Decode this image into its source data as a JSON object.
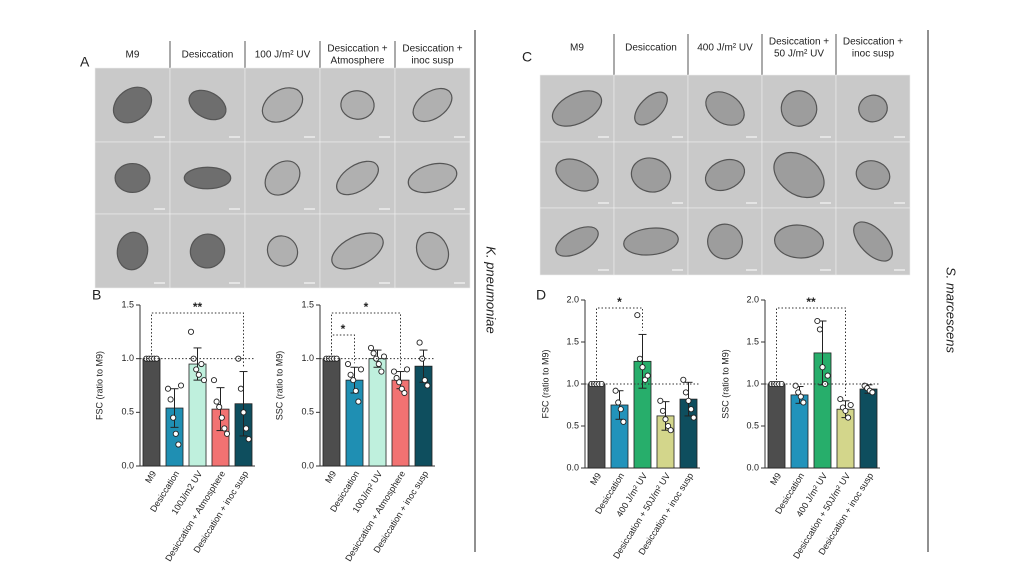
{
  "micrographs": [
    {
      "label": "A",
      "headers": [
        [
          "M9"
        ],
        [
          "Desiccation"
        ],
        [
          "100 J/m² UV"
        ],
        [
          "Desiccation +",
          "Atmosphere"
        ],
        [
          "Desiccation +",
          "inoc susp"
        ]
      ]
    },
    {
      "label": "C",
      "headers": [
        [
          "M9"
        ],
        [
          "Desiccation"
        ],
        [
          "400 J/m² UV"
        ],
        [
          "Desiccation +",
          "50 J/m² UV"
        ],
        [
          "Desiccation +",
          "inoc susp"
        ]
      ]
    }
  ],
  "species": [
    "K. pneumoniae",
    "S. marcescens"
  ],
  "chart_panels": [
    "B",
    "D"
  ],
  "chart_data": [
    {
      "type": "bar",
      "ylabel": "FSC (ratio to M9)",
      "categories": [
        "M9",
        "Desiccation",
        "100J/m2 UV",
        "Desiccation + Atmosphere",
        "Desiccation + inoc susp"
      ],
      "values": [
        1.0,
        0.54,
        0.95,
        0.53,
        0.58
      ],
      "errors": [
        0,
        0.18,
        0.15,
        0.2,
        0.3
      ],
      "points": [
        [
          1,
          1,
          1,
          1,
          1
        ],
        [
          0.72,
          0.62,
          0.45,
          0.3,
          0.2,
          0.75
        ],
        [
          1.25,
          1.0,
          0.9,
          0.85,
          0.95,
          0.8
        ],
        [
          0.8,
          0.6,
          0.55,
          0.45,
          0.35,
          0.3
        ],
        [
          1.0,
          0.72,
          0.5,
          0.35,
          0.25
        ]
      ],
      "colors": [
        "#4d4d4d",
        "#1f8fb3",
        "#bff0dd",
        "#f27272",
        "#0e4e5e"
      ],
      "ylim": [
        0,
        1.5
      ],
      "yticks": [
        {
          "value": 0,
          "label": "0.0"
        },
        {
          "value": 0.5,
          "label": "0.5"
        },
        {
          "value": 1,
          "label": "1.0"
        },
        {
          "value": 1.5,
          "label": "1.5"
        }
      ],
      "reference_line": 1,
      "significance": [
        {
          "text": "**",
          "from": 0,
          "to": 4
        }
      ]
    },
    {
      "type": "bar",
      "ylabel": "SSC (ratio to M9)",
      "categories": [
        "M9",
        "Desiccation",
        "100J/m² UV",
        "Desiccation + Atmosphere",
        "Desiccation + inoc susp"
      ],
      "values": [
        1.0,
        0.8,
        1.0,
        0.8,
        0.93
      ],
      "errors": [
        0,
        0.12,
        0.08,
        0.08,
        0.15
      ],
      "points": [
        [
          1,
          1,
          1,
          1,
          1
        ],
        [
          0.95,
          0.85,
          0.8,
          0.7,
          0.6,
          0.9
        ],
        [
          1.1,
          1.05,
          1.0,
          0.95,
          0.88,
          1.02
        ],
        [
          0.88,
          0.82,
          0.78,
          0.72,
          0.68,
          0.9
        ],
        [
          1.15,
          1.0,
          0.8,
          0.75
        ]
      ],
      "colors": [
        "#4d4d4d",
        "#1f8fb3",
        "#bff0dd",
        "#f27272",
        "#0e4e5e"
      ],
      "ylim": [
        0,
        1.5
      ],
      "yticks": [
        {
          "value": 0,
          "label": "0.0"
        },
        {
          "value": 0.5,
          "label": "0.5"
        },
        {
          "value": 1,
          "label": "1.0"
        },
        {
          "value": 1.5,
          "label": "1.5"
        }
      ],
      "reference_line": 1,
      "significance": [
        {
          "text": "*",
          "from": 0,
          "to": 1
        },
        {
          "text": "*",
          "from": 0,
          "to": 3
        }
      ]
    },
    {
      "type": "bar",
      "ylabel": "FSC (ratio to M9)",
      "categories": [
        "M9",
        "Desiccation",
        "400 J/m² UV",
        "Desiccation + 50J/m² UV",
        "Desiccation + inoc susp"
      ],
      "values": [
        1.0,
        0.75,
        1.27,
        0.62,
        0.82
      ],
      "errors": [
        0,
        0.17,
        0.32,
        0.17,
        0.2
      ],
      "points": [
        [
          1,
          1,
          1,
          1,
          1
        ],
        [
          0.92,
          0.78,
          0.7,
          0.55
        ],
        [
          1.82,
          1.3,
          1.2,
          1.05,
          1.1
        ],
        [
          0.8,
          0.68,
          0.58,
          0.5,
          0.45
        ],
        [
          1.05,
          0.9,
          0.8,
          0.7,
          0.6
        ]
      ],
      "colors": [
        "#4d4d4d",
        "#2293bb",
        "#27ae6b",
        "#d3d68b",
        "#0e4e5e"
      ],
      "ylim": [
        0,
        2
      ],
      "yticks": [
        {
          "value": 0,
          "label": "0.0"
        },
        {
          "value": 0.5,
          "label": "0.5"
        },
        {
          "value": 1,
          "label": "1.0"
        },
        {
          "value": 1.5,
          "label": "1.5"
        },
        {
          "value": 2,
          "label": "2.0"
        }
      ],
      "reference_line": 1,
      "significance": [
        {
          "text": "*",
          "from": 0,
          "to": 2
        }
      ]
    },
    {
      "type": "bar",
      "ylabel": "SSC (ratio to M9)",
      "categories": [
        "M9",
        "Desiccation",
        "400 J/m² UV",
        "Desiccation + 50J/m² UV",
        "Desiccation + inoc susp"
      ],
      "values": [
        1.0,
        0.87,
        1.37,
        0.7,
        0.94
      ],
      "errors": [
        0,
        0.1,
        0.38,
        0.1,
        0.05
      ],
      "points": [
        [
          1,
          1,
          1,
          1,
          1
        ],
        [
          0.98,
          0.9,
          0.85,
          0.78
        ],
        [
          1.75,
          1.65,
          1.2,
          1.0,
          1.1
        ],
        [
          0.82,
          0.72,
          0.68,
          0.6,
          0.75
        ],
        [
          0.98,
          0.95,
          0.92,
          0.9
        ]
      ],
      "colors": [
        "#4d4d4d",
        "#2293bb",
        "#27ae6b",
        "#d3d68b",
        "#0e4e5e"
      ],
      "ylim": [
        0,
        2
      ],
      "yticks": [
        {
          "value": 0,
          "label": "0.0"
        },
        {
          "value": 0.5,
          "label": "0.5"
        },
        {
          "value": 1,
          "label": "1.0"
        },
        {
          "value": 1.5,
          "label": "1.5"
        },
        {
          "value": 2,
          "label": "2.0"
        }
      ],
      "reference_line": 1,
      "significance": [
        {
          "text": "**",
          "from": 0,
          "to": 3
        }
      ]
    }
  ]
}
